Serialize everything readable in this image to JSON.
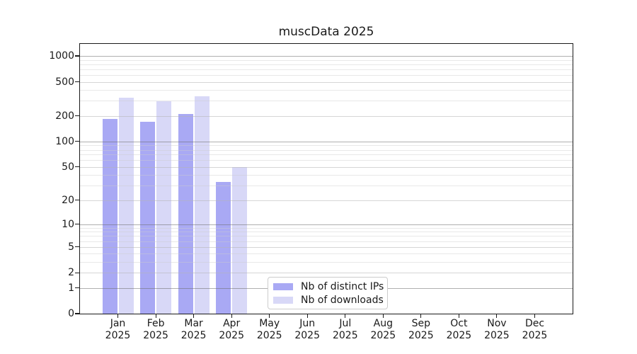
{
  "title": "muscData 2025",
  "legend": {
    "items": [
      {
        "label": "Nb of distinct IPs",
        "color": "#a9a9f4"
      },
      {
        "label": "Nb of downloads",
        "color": "#d8d8f7"
      }
    ]
  },
  "chart_data": {
    "type": "bar",
    "title": "muscData 2025",
    "categories": [
      "Jan 2025",
      "Feb 2025",
      "Mar 2025",
      "Apr 2025",
      "May 2025",
      "Jun 2025",
      "Jul 2025",
      "Aug 2025",
      "Sep 2025",
      "Oct 2025",
      "Nov 2025",
      "Dec 2025"
    ],
    "month_line1": [
      "Jan",
      "Feb",
      "Mar",
      "Apr",
      "May",
      "Jun",
      "Jul",
      "Aug",
      "Sep",
      "Oct",
      "Nov",
      "Dec"
    ],
    "month_line2": "2025",
    "series": [
      {
        "name": "Nb of distinct IPs",
        "color": "#a9a9f4",
        "values": [
          185,
          172,
          210,
          33,
          null,
          null,
          null,
          null,
          null,
          null,
          null,
          null
        ]
      },
      {
        "name": "Nb of downloads",
        "color": "#d8d8f7",
        "values": [
          328,
          297,
          340,
          50,
          null,
          null,
          null,
          null,
          null,
          null,
          null,
          null
        ]
      }
    ],
    "xlabel": "",
    "ylabel": "",
    "y_axis": {
      "scale": "log10(value+1)",
      "ticks": [
        0,
        1,
        2,
        5,
        10,
        20,
        50,
        100,
        200,
        500,
        1000
      ],
      "power_of_ten_ticks": [
        1,
        10,
        100,
        1000
      ],
      "minor_gridlines": [
        3,
        4,
        6,
        7,
        8,
        9,
        30,
        40,
        60,
        70,
        80,
        90,
        300,
        400,
        600,
        700,
        800,
        900
      ],
      "ylim": [
        0,
        1400
      ]
    },
    "grid": "horizontal",
    "legend_position": "bottom-center",
    "bar_colors": {
      "distinct_ips": "#a9a9f4",
      "downloads": "#d8d8f7"
    },
    "grid_colors": {
      "power_of_ten": "#b5b5b5",
      "major": "#e0e0e0",
      "minor": "#efefef"
    }
  }
}
